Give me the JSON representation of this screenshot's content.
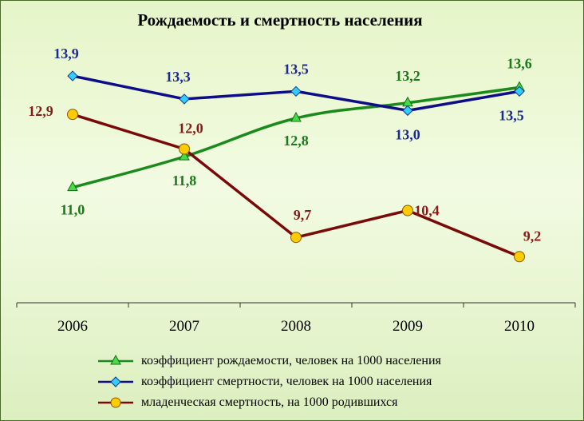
{
  "chart_data": {
    "type": "line",
    "title": "Рождаемость и смертность населения",
    "categories": [
      "2006",
      "2007",
      "2008",
      "2009",
      "2010"
    ],
    "ylim": [
      8.0,
      14.4
    ],
    "series": [
      {
        "name": "коэффициент рождаемости, человек на 1000 населения",
        "values": [
          11.0,
          11.8,
          12.8,
          13.2,
          13.6
        ],
        "labels": [
          "11,0",
          "11,8",
          "12,8",
          "13,2",
          "13,6"
        ],
        "color": "#1a8a1a",
        "label_color": "#1a7a1a",
        "marker": "triangle",
        "marker_fill": "#44dd44",
        "smooth": true
      },
      {
        "name": "коэффициент смертности, человек на 1000 населения",
        "values": [
          13.9,
          13.3,
          13.5,
          13.0,
          13.5
        ],
        "labels": [
          "13,9",
          "13,3",
          "13,5",
          "13,0",
          "13,5"
        ],
        "color": "#0d0d8a",
        "label_color": "#1a2a99",
        "marker": "diamond",
        "marker_fill": "#33ccff",
        "smooth": false
      },
      {
        "name": "младенческая смертность, на 1000 родившихся",
        "values": [
          12.9,
          12.0,
          9.7,
          10.4,
          9.2
        ],
        "labels": [
          "12,9",
          "12,0",
          "9,7",
          "10,4",
          "9,2"
        ],
        "color": "#7a0a0a",
        "label_color": "#8a1a1a",
        "marker": "circle",
        "marker_fill": "#ffcc00",
        "smooth": false
      }
    ]
  }
}
